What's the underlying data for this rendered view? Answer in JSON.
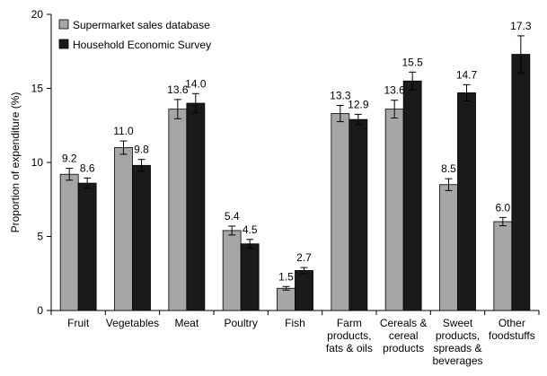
{
  "chart_data": {
    "type": "bar",
    "ylabel": "Proportion of expenditure (%)",
    "xlabel": "",
    "ylim": [
      0,
      20
    ],
    "yticks": [
      0,
      5,
      10,
      15,
      20
    ],
    "grid": false,
    "legend": "top-left",
    "categories": [
      [
        "Fruit"
      ],
      [
        "Vegetables"
      ],
      [
        "Meat"
      ],
      [
        "Poultry"
      ],
      [
        "Fish"
      ],
      [
        "Farm",
        "products,",
        "fats & oils"
      ],
      [
        "Cereals &",
        "cereal",
        "products"
      ],
      [
        "Sweet",
        "products,",
        "spreads &",
        "beverages"
      ],
      [
        "Other",
        "foodstuffs"
      ]
    ],
    "series": [
      {
        "name": "Supermarket sales database",
        "color": "#a6a6a6",
        "values": [
          9.2,
          11.0,
          13.6,
          5.4,
          1.5,
          13.3,
          13.6,
          8.5,
          6.0
        ],
        "labels": [
          "9.2",
          "11.0",
          "13.6",
          "5.4",
          "1.5",
          "13.3",
          "13.6",
          "8.5",
          "6.0"
        ],
        "errors": [
          0.4,
          0.45,
          0.65,
          0.3,
          0.12,
          0.55,
          0.6,
          0.4,
          0.28
        ]
      },
      {
        "name": "Household Economic Survey",
        "color": "#1a1a1a",
        "values": [
          8.6,
          9.8,
          14.0,
          4.5,
          2.7,
          12.9,
          15.5,
          14.7,
          17.3
        ],
        "labels": [
          "8.6",
          "9.8",
          "14.0",
          "4.5",
          "2.7",
          "12.9",
          "15.5",
          "14.7",
          "17.3"
        ],
        "errors": [
          0.35,
          0.4,
          0.65,
          0.3,
          0.2,
          0.35,
          0.6,
          0.55,
          1.25
        ]
      }
    ]
  }
}
